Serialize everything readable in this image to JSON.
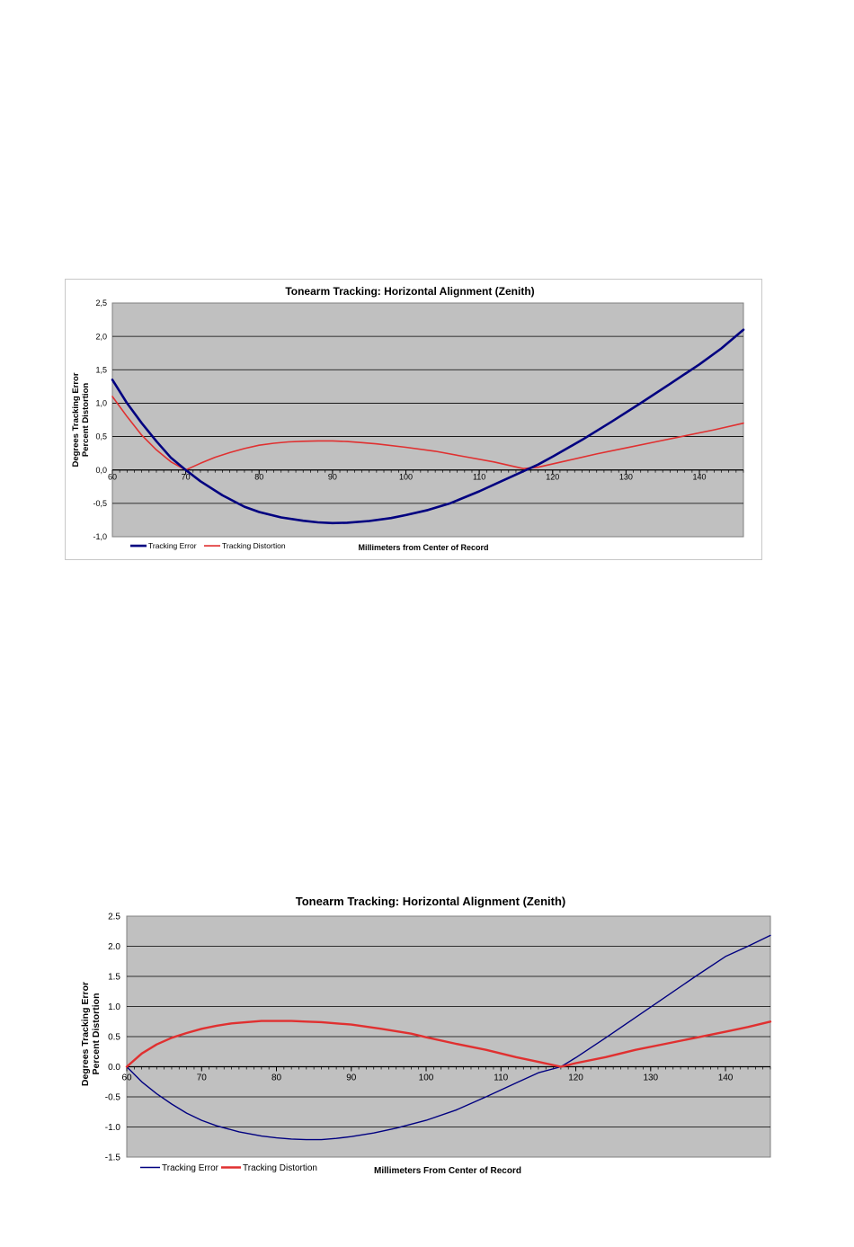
{
  "page": {
    "background": "#ffffff"
  },
  "chart_data": [
    {
      "type": "line",
      "title": "Tonearm Tracking:  Horizontal Alignment (Zenith)",
      "xlabel": "Millimeters from Center of Record",
      "ylabel_lines": [
        "Degrees Tracking Error",
        "Percent Distortion"
      ],
      "xlim": [
        60,
        146
      ],
      "ylim": [
        -1.0,
        2.5
      ],
      "x_ticks": [
        60,
        70,
        80,
        90,
        100,
        110,
        120,
        130,
        140
      ],
      "x_tick_labels": [
        "60",
        "70",
        "80",
        "90",
        "100",
        "110",
        "120",
        "130",
        "140"
      ],
      "y_ticks": [
        -1.0,
        -0.5,
        0.0,
        0.5,
        1.0,
        1.5,
        2.0,
        2.5
      ],
      "y_tick_labels": [
        "-1,0",
        "-0,5",
        "0,0",
        "0,5",
        "1,0",
        "1,5",
        "2,0",
        "2,5"
      ],
      "grid": true,
      "plot_background": "#c0c0c0",
      "legend_position": "bottom-left",
      "series": [
        {
          "name": "Tracking Error",
          "color": "#000080",
          "x": [
            60,
            62,
            64,
            66,
            68,
            70,
            72,
            75,
            78,
            80,
            83,
            86,
            88,
            90,
            92,
            95,
            98,
            100,
            103,
            106,
            110,
            113,
            116,
            118,
            120,
            124,
            128,
            132,
            136,
            140,
            143,
            146
          ],
          "values": [
            1.35,
            1.0,
            0.7,
            0.43,
            0.18,
            0.0,
            -0.17,
            -0.38,
            -0.55,
            -0.63,
            -0.71,
            -0.76,
            -0.785,
            -0.795,
            -0.79,
            -0.765,
            -0.72,
            -0.675,
            -0.6,
            -0.5,
            -0.32,
            -0.17,
            -0.02,
            0.08,
            0.2,
            0.45,
            0.72,
            1.0,
            1.29,
            1.58,
            1.82,
            2.1
          ]
        },
        {
          "name": "Tracking Distortion",
          "color": "#e03030",
          "x": [
            60,
            62,
            64,
            66,
            68,
            70,
            72,
            74,
            76,
            78,
            80,
            82,
            84,
            86,
            88,
            90,
            92,
            94,
            96,
            100,
            104,
            108,
            112,
            116,
            118,
            122,
            126,
            130,
            134,
            138,
            142,
            146
          ],
          "values": [
            1.1,
            0.8,
            0.52,
            0.3,
            0.12,
            0.0,
            0.1,
            0.19,
            0.26,
            0.32,
            0.37,
            0.4,
            0.42,
            0.43,
            0.435,
            0.435,
            0.425,
            0.41,
            0.39,
            0.34,
            0.28,
            0.2,
            0.12,
            0.02,
            0.04,
            0.14,
            0.24,
            0.33,
            0.42,
            0.51,
            0.6,
            0.7
          ]
        }
      ]
    },
    {
      "type": "line",
      "title": "Tonearm Tracking:  Horizontal Alignment (Zenith)",
      "xlabel": "Millimeters From Center of Record",
      "ylabel_lines": [
        "Degrees Tracking Error",
        "Percent Distortion"
      ],
      "xlim": [
        60,
        146
      ],
      "ylim": [
        -1.5,
        2.5
      ],
      "x_ticks": [
        60,
        70,
        80,
        90,
        100,
        110,
        120,
        130,
        140
      ],
      "x_tick_labels": [
        "60",
        "70",
        "80",
        "90",
        "100",
        "110",
        "120",
        "130",
        "140"
      ],
      "y_ticks": [
        -1.5,
        -1.0,
        -0.5,
        0.0,
        0.5,
        1.0,
        1.5,
        2.0,
        2.5
      ],
      "y_tick_labels": [
        "-1.5",
        "-1.0",
        "-0.5",
        "0.0",
        "0.5",
        "1.0",
        "1.5",
        "2.0",
        "2.5"
      ],
      "grid": true,
      "plot_background": "#c0c0c0",
      "legend_position": "bottom-left",
      "series": [
        {
          "name": "Tracking Error",
          "color": "#000080",
          "x": [
            60,
            62,
            64,
            66,
            68,
            70,
            72,
            75,
            78,
            80,
            82,
            84,
            86,
            88,
            90,
            93,
            96,
            100,
            104,
            108,
            112,
            115,
            118,
            120,
            124,
            128,
            132,
            136,
            140,
            143,
            146
          ],
          "values": [
            0.0,
            -0.25,
            -0.45,
            -0.62,
            -0.77,
            -0.89,
            -0.98,
            -1.08,
            -1.15,
            -1.18,
            -1.2,
            -1.21,
            -1.21,
            -1.19,
            -1.16,
            -1.1,
            -1.02,
            -0.89,
            -0.72,
            -0.5,
            -0.27,
            -0.1,
            0.0,
            0.15,
            0.48,
            0.82,
            1.16,
            1.5,
            1.83,
            2.0,
            2.18
          ]
        },
        {
          "name": "Tracking Distortion",
          "color": "#e03030",
          "x": [
            60,
            62,
            64,
            66,
            68,
            70,
            72,
            74,
            76,
            78,
            80,
            82,
            84,
            86,
            88,
            90,
            94,
            98,
            100,
            104,
            108,
            112,
            115,
            118,
            120,
            124,
            128,
            132,
            136,
            140,
            143,
            146
          ],
          "values": [
            0.0,
            0.22,
            0.37,
            0.48,
            0.56,
            0.63,
            0.68,
            0.72,
            0.74,
            0.76,
            0.76,
            0.76,
            0.75,
            0.74,
            0.72,
            0.7,
            0.63,
            0.55,
            0.49,
            0.38,
            0.28,
            0.16,
            0.08,
            0.0,
            0.06,
            0.16,
            0.28,
            0.38,
            0.48,
            0.58,
            0.66,
            0.75
          ]
        }
      ]
    }
  ]
}
